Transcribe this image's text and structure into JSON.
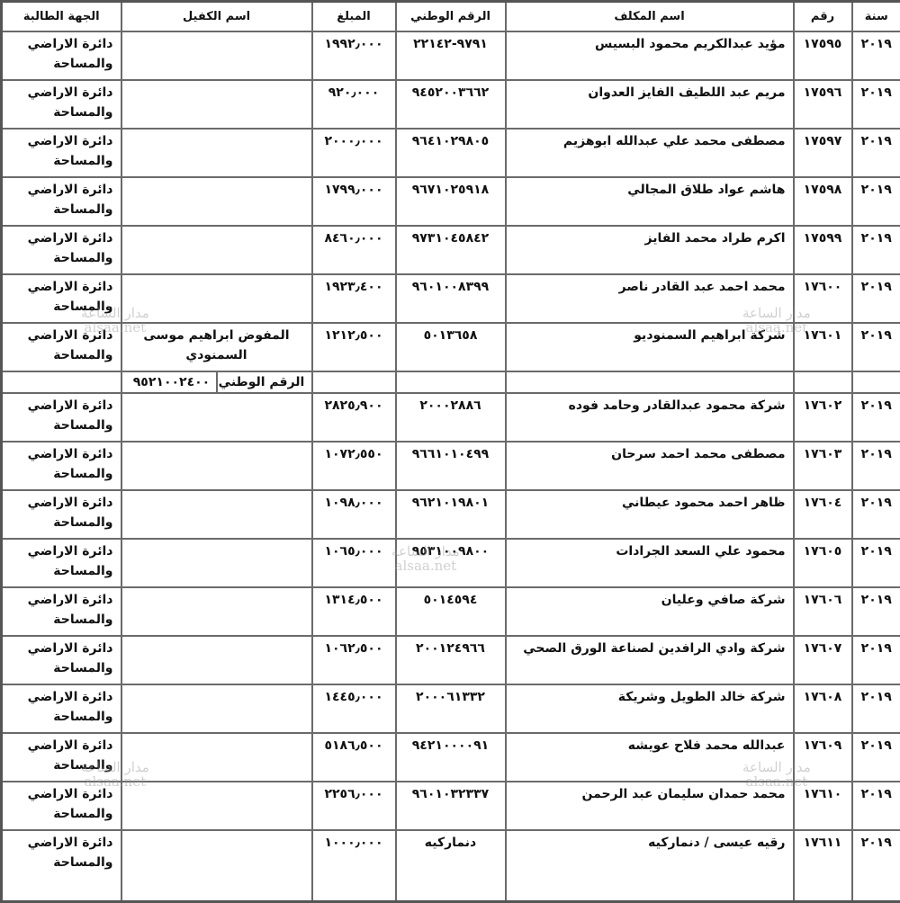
{
  "headers": {
    "year": "سنة",
    "number": "رقم",
    "name": "اسم المكلف",
    "national_id": "الرقم الوطني",
    "amount": "المبلغ",
    "guarantor": "اسم الكفيل",
    "requester": "الجهة الطالبة"
  },
  "rows": [
    {
      "year": "٢٠١٩",
      "number": "١٧٥٩٥",
      "name": "مؤيد عبدالكريم محمود البسيس",
      "national_id": "٩٧٩١-٢٢١٤٢",
      "amount": "١٩٩٢٫٠٠٠",
      "guarantor": "",
      "requester": "دائرة الاراضي والمساحة"
    },
    {
      "year": "٢٠١٩",
      "number": "١٧٥٩٦",
      "name": "مريم عبد اللطيف الفايز العدوان",
      "national_id": "٩٤٥٢٠٠٣٦٦٢",
      "amount": "٩٢٠٫٠٠٠",
      "guarantor": "",
      "requester": "دائرة الاراضي والمساحة"
    },
    {
      "year": "٢٠١٩",
      "number": "١٧٥٩٧",
      "name": "مصطفى محمد علي عبدالله ابوهزيم",
      "national_id": "٩٦٤١٠٢٩٨٠٥",
      "amount": "٢٠٠٠٫٠٠٠",
      "guarantor": "",
      "requester": "دائرة الاراضي والمساحة"
    },
    {
      "year": "٢٠١٩",
      "number": "١٧٥٩٨",
      "name": "هاشم عواد طلاق المجالي",
      "national_id": "٩٦٧١٠٢٥٩١٨",
      "amount": "١٧٩٩٫٠٠٠",
      "guarantor": "",
      "requester": "دائرة الاراضي والمساحة"
    },
    {
      "year": "٢٠١٩",
      "number": "١٧٥٩٩",
      "name": "اكرم طراد محمد الفايز",
      "national_id": "٩٧٣١٠٤٥٨٤٢",
      "amount": "٨٤٦٠٫٠٠٠",
      "guarantor": "",
      "requester": "دائرة الاراضي والمساحة"
    },
    {
      "year": "٢٠١٩",
      "number": "١٧٦٠٠",
      "name": "محمد احمد عبد القادر ناصر",
      "national_id": "٩٦٠١٠٠٨٣٩٩",
      "amount": "١٩٢٣٫٤٠٠",
      "guarantor": "",
      "requester": "دائرة الاراضي والمساحة"
    },
    {
      "year": "٢٠١٩",
      "number": "١٧٦٠١",
      "name": "شركة ابراهيم السمنوديو",
      "national_id": "٥٠١٣٦٥٨",
      "amount": "١٢١٢٫٥٠٠",
      "guarantor": "المفوض ابراهيم موسى السمنودي",
      "requester": "دائرة الاراضي والمساحة"
    },
    {
      "year": "٢٠١٩",
      "number": "١٧٦٠٢",
      "name": "شركة محمود عبدالقادر وحامد فوده",
      "national_id": "٢٠٠٠٢٨٨٦",
      "amount": "٢٨٢٥٫٩٠٠",
      "guarantor": "",
      "requester": "دائرة الاراضي والمساحة"
    },
    {
      "year": "٢٠١٩",
      "number": "١٧٦٠٣",
      "name": "مصطفى محمد احمد سرحان",
      "national_id": "٩٦٦١٠١٠٤٩٩",
      "amount": "١٠٧٢٫٥٥٠",
      "guarantor": "",
      "requester": "دائرة الاراضي والمساحة"
    },
    {
      "year": "٢٠١٩",
      "number": "١٧٦٠٤",
      "name": "ظاهر احمد محمود عيطاني",
      "national_id": "٩٦٢١٠١٩٨٠١",
      "amount": "١٠٩٨٫٠٠٠",
      "guarantor": "",
      "requester": "دائرة الاراضي والمساحة"
    },
    {
      "year": "٢٠١٩",
      "number": "١٧٦٠٥",
      "name": "محمود علي السعد الجرادات",
      "national_id": "٩٥٣١٠٠٩٨٠٠",
      "amount": "١٠٦٥٫٠٠٠",
      "guarantor": "",
      "requester": "دائرة الاراضي والمساحة"
    },
    {
      "year": "٢٠١٩",
      "number": "١٧٦٠٦",
      "name": "شركة صافي وعليان",
      "national_id": "٥٠١٤٥٩٤",
      "amount": "١٣١٤٫٥٠٠",
      "guarantor": "",
      "requester": "دائرة الاراضي والمساحة"
    },
    {
      "year": "٢٠١٩",
      "number": "١٧٦٠٧",
      "name": "شركة وادي الرافدين لصناعة الورق الصحي",
      "national_id": "٢٠٠١٢٤٩٦٦",
      "amount": "١٠٦٢٫٥٠٠",
      "guarantor": "",
      "requester": "دائرة الاراضي والمساحة"
    },
    {
      "year": "٢٠١٩",
      "number": "١٧٦٠٨",
      "name": "شركة خالد الطويل وشريكة",
      "national_id": "٢٠٠٠٦١٣٣٢",
      "amount": "١٤٤٥٫٠٠٠",
      "guarantor": "",
      "requester": "دائرة الاراضي والمساحة"
    },
    {
      "year": "٢٠١٩",
      "number": "١٧٦٠٩",
      "name": "عبدالله محمد فلاح عويشه",
      "national_id": "٩٤٢١٠٠٠٠٩١",
      "amount": "٥١٨٦٫٥٠٠",
      "guarantor": "",
      "requester": "دائرة الاراضي والمساحة"
    },
    {
      "year": "٢٠١٩",
      "number": "١٧٦١٠",
      "name": "محمد حمدان سليمان عبد الرحمن",
      "national_id": "٩٦٠١٠٣٢٣٣٧",
      "amount": "٢٢٥٦٫٠٠٠",
      "guarantor": "",
      "requester": "دائرة الاراضي والمساحة"
    },
    {
      "year": "٢٠١٩",
      "number": "١٧٦١١",
      "name": "رقيه عيسى / دنماركيه",
      "national_id": "دنماركيه",
      "amount": "١٠٠٠٫٠٠٠",
      "guarantor": "",
      "requester": "دائرة الاراضي والمساحة"
    }
  ],
  "guarantor_subrow": {
    "after_row": 6,
    "label": "الرقم الوطني",
    "value": "٩٥٢١٠٠٢٤٠٠"
  },
  "watermark": {
    "ar": "مدار الساعة",
    "en": "alsaa.net"
  }
}
